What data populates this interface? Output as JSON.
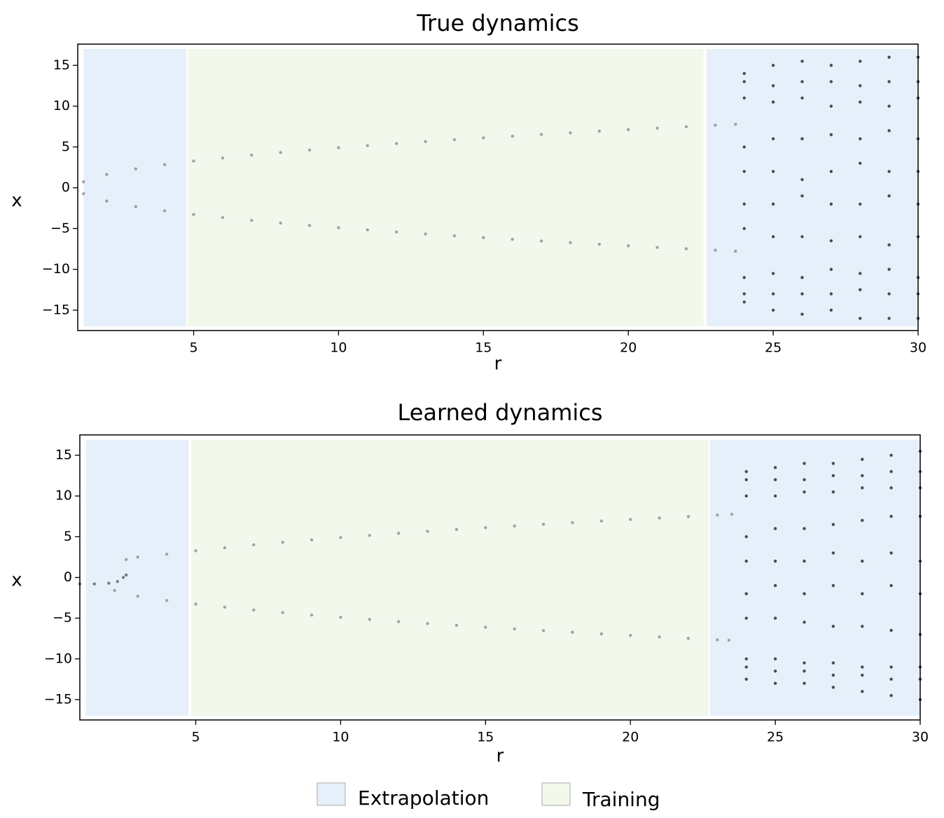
{
  "legend": [
    {
      "name": "Extrapolation",
      "color": "#e6f0fa"
    },
    {
      "name": "Training",
      "color": "#f2f8ec"
    }
  ],
  "chart_data": [
    {
      "type": "scatter",
      "title": "True dynamics",
      "x_label": "r",
      "y_label": "x",
      "xlim": [
        1,
        30
      ],
      "ylim": [
        -17.5,
        17.6
      ],
      "xticks": [
        5,
        10,
        15,
        20,
        25,
        30
      ],
      "yticks": [
        {
          "value": -15,
          "label": "−15"
        },
        {
          "value": -10,
          "label": "−10"
        },
        {
          "value": -5,
          "label": "−5"
        },
        0,
        5,
        10,
        15
      ],
      "regions": [
        {
          "legend": 0,
          "span": [
            1.2,
            4.75
          ]
        },
        {
          "legend": 1,
          "span": [
            4.8,
            22.6
          ]
        },
        {
          "legend": 0,
          "span": [
            22.7,
            30
          ]
        }
      ],
      "series": [
        {
          "color": "#8a8f94",
          "x": [
            1.2,
            2,
            3,
            4,
            5,
            6,
            7,
            8,
            9,
            10,
            11,
            12,
            13,
            14,
            15,
            16,
            17,
            18,
            19,
            20,
            21,
            22,
            23,
            23.7
          ],
          "y": [
            0.73,
            1.63,
            2.31,
            2.83,
            3.27,
            3.65,
            4.0,
            4.32,
            4.62,
            4.9,
            5.16,
            5.42,
            5.66,
            5.89,
            6.11,
            6.32,
            6.53,
            6.73,
            6.93,
            7.12,
            7.3,
            7.48,
            7.66,
            7.78
          ]
        },
        {
          "color": "#8a8f94",
          "x": [
            1.2,
            2,
            3,
            4,
            5,
            6,
            7,
            8,
            9,
            10,
            11,
            12,
            13,
            14,
            15,
            16,
            17,
            18,
            19,
            20,
            21,
            22,
            23,
            23.7
          ],
          "y": [
            -0.73,
            -1.63,
            -2.31,
            -2.83,
            -3.27,
            -3.65,
            -4.0,
            -4.32,
            -4.62,
            -4.9,
            -5.16,
            -5.42,
            -5.66,
            -5.89,
            -6.11,
            -6.32,
            -6.53,
            -6.73,
            -6.93,
            -7.12,
            -7.3,
            -7.48,
            -7.66,
            -7.78
          ]
        },
        {
          "color": "#222222",
          "x": [
            24,
            24,
            24,
            24,
            24,
            24,
            24,
            24,
            24,
            24,
            25,
            25,
            25,
            25,
            25,
            25,
            25,
            25,
            25,
            25,
            26,
            26,
            26,
            26,
            26,
            26,
            26,
            26,
            26,
            26,
            27,
            27,
            27,
            27,
            27,
            27,
            27,
            27,
            27,
            27,
            28,
            28,
            28,
            28,
            28,
            28,
            28,
            28,
            28,
            28,
            29,
            29,
            29,
            29,
            29,
            29,
            29,
            29,
            29,
            29,
            30,
            30,
            30,
            30,
            30,
            30,
            30,
            30,
            30,
            30
          ],
          "y": [
            11,
            13,
            14,
            -5,
            -2,
            2,
            5,
            -11,
            -13,
            -14,
            10.5,
            12.5,
            15,
            -6,
            -2,
            2,
            6,
            -10.5,
            -13,
            -15,
            11,
            13,
            15.5,
            -6,
            -1,
            1,
            6,
            -11,
            -13,
            -15.5,
            10,
            13,
            15,
            -6.5,
            -2,
            2,
            6.5,
            -10,
            -13,
            -15,
            10.5,
            12.5,
            15.5,
            -6,
            -2,
            3,
            6,
            -10.5,
            -12.5,
            -16,
            10,
            13,
            16,
            -7,
            -1,
            2,
            7,
            -10,
            -13,
            -16,
            11,
            13,
            16,
            -6,
            -2,
            2,
            6,
            -11,
            -13,
            -16
          ]
        }
      ]
    },
    {
      "type": "scatter",
      "title": "Learned dynamics",
      "x_label": "r",
      "y_label": "x",
      "xlim": [
        1,
        30
      ],
      "ylim": [
        -17.5,
        17.5
      ],
      "xticks": [
        5,
        10,
        15,
        20,
        25,
        30
      ],
      "yticks": [
        {
          "value": -15,
          "label": "−15"
        },
        {
          "value": -10,
          "label": "−10"
        },
        {
          "value": -5,
          "label": "−5"
        },
        0,
        5,
        10,
        15
      ],
      "regions": [
        {
          "legend": 0,
          "span": [
            1.2,
            4.75
          ]
        },
        {
          "legend": 1,
          "span": [
            4.85,
            22.7
          ]
        },
        {
          "legend": 0,
          "span": [
            22.75,
            30
          ]
        }
      ],
      "series": [
        {
          "color": "#5a6068",
          "x": [
            1,
            1.5,
            2,
            2.3,
            2.5,
            2.6
          ],
          "y": [
            -0.8,
            -0.8,
            -0.7,
            -0.5,
            0,
            0.3
          ]
        },
        {
          "color": "#8a8f94",
          "x": [
            2.6,
            3,
            4,
            5,
            6,
            7,
            8,
            9,
            10,
            11,
            12,
            13,
            14,
            15,
            16,
            17,
            18,
            19,
            20,
            21,
            22,
            23,
            23.5
          ],
          "y": [
            2.2,
            2.5,
            2.85,
            3.27,
            3.65,
            4.0,
            4.32,
            4.62,
            4.9,
            5.16,
            5.42,
            5.66,
            5.89,
            6.11,
            6.32,
            6.53,
            6.73,
            6.93,
            7.12,
            7.3,
            7.48,
            7.66,
            7.75
          ]
        },
        {
          "color": "#8a8f94",
          "x": [
            2.2,
            3,
            4,
            5,
            6,
            7,
            8,
            9,
            10,
            11,
            12,
            13,
            14,
            15,
            16,
            17,
            18,
            19,
            20,
            21,
            22,
            23,
            23.4
          ],
          "y": [
            -1.6,
            -2.3,
            -2.83,
            -3.27,
            -3.65,
            -4.0,
            -4.32,
            -4.62,
            -4.9,
            -5.16,
            -5.42,
            -5.66,
            -5.89,
            -6.11,
            -6.32,
            -6.53,
            -6.73,
            -6.93,
            -7.12,
            -7.3,
            -7.48,
            -7.66,
            -7.7
          ]
        },
        {
          "color": "#222222",
          "x": [
            24,
            24,
            24,
            24,
            24,
            24,
            24,
            24,
            24,
            24,
            25,
            25,
            25,
            25,
            25,
            25,
            25,
            25,
            25,
            25,
            26,
            26,
            26,
            26,
            26,
            26,
            26,
            26,
            26,
            26,
            27,
            27,
            27,
            27,
            27,
            27,
            27,
            27,
            27,
            27,
            28,
            28,
            28,
            28,
            28,
            28,
            28,
            28,
            28,
            28,
            29,
            29,
            29,
            29,
            29,
            29,
            29,
            29,
            29,
            29,
            30,
            30,
            30,
            30,
            30,
            30,
            30,
            30,
            30,
            30
          ],
          "y": [
            10,
            12,
            13,
            -5,
            -2,
            2,
            5,
            -10,
            -11,
            -12.5,
            10,
            12,
            13.5,
            -5,
            -1,
            2,
            6,
            -10,
            -11.5,
            -13,
            10.5,
            12,
            14,
            -5.5,
            -2,
            2,
            6,
            -10.5,
            -11.5,
            -13,
            10.5,
            12.5,
            14,
            -6,
            -1,
            3,
            6.5,
            -10.5,
            -12,
            -13.5,
            11,
            12.5,
            14.5,
            -6,
            -2,
            2,
            7,
            -11,
            -12,
            -14,
            11,
            13,
            15,
            -6.5,
            -1,
            3,
            7.5,
            -11,
            -12.5,
            -14.5,
            11,
            13,
            15.5,
            -7,
            -2,
            2,
            7.5,
            -11,
            -12.5,
            -15
          ]
        }
      ]
    }
  ]
}
